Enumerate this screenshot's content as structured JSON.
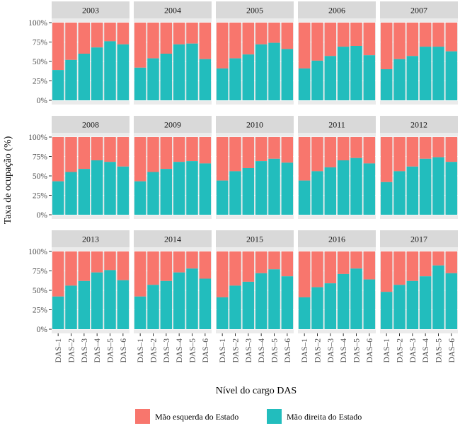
{
  "chart_data": {
    "type": "bar",
    "stacked": true,
    "percent": true,
    "ylabel": "Taxa de ocupação (%)",
    "xlabel": "Nível do cargo DAS",
    "categories": [
      "DAS–1",
      "DAS–2",
      "DAS–3",
      "DAS–4",
      "DAS–5",
      "DAS–6"
    ],
    "y_ticks": [
      "0%",
      "25%",
      "50%",
      "75%",
      "100%"
    ],
    "ylim": [
      0,
      100
    ],
    "legend_position": "bottom",
    "series": [
      {
        "name": "Mão esquerda do Estado",
        "color": "#f8766d"
      },
      {
        "name": "Mão direita do Estado",
        "color": "#22bdbd"
      }
    ],
    "panels": [
      {
        "title": "2003",
        "right_hand": [
          39,
          52,
          60,
          68,
          76,
          72
        ]
      },
      {
        "title": "2004",
        "right_hand": [
          42,
          54,
          60,
          72,
          73,
          53
        ]
      },
      {
        "title": "2005",
        "right_hand": [
          41,
          54,
          59,
          72,
          74,
          66
        ]
      },
      {
        "title": "2006",
        "right_hand": [
          41,
          51,
          57,
          69,
          70,
          58
        ]
      },
      {
        "title": "2007",
        "right_hand": [
          40,
          53,
          57,
          69,
          69,
          63
        ]
      },
      {
        "title": "2008",
        "right_hand": [
          43,
          55,
          59,
          70,
          68,
          62
        ]
      },
      {
        "title": "2009",
        "right_hand": [
          43,
          55,
          59,
          68,
          69,
          66
        ]
      },
      {
        "title": "2010",
        "right_hand": [
          44,
          56,
          60,
          69,
          72,
          67
        ]
      },
      {
        "title": "2011",
        "right_hand": [
          44,
          56,
          61,
          70,
          73,
          66
        ]
      },
      {
        "title": "2012",
        "right_hand": [
          42,
          56,
          62,
          72,
          74,
          68
        ]
      },
      {
        "title": "2013",
        "right_hand": [
          42,
          56,
          62,
          73,
          76,
          63
        ]
      },
      {
        "title": "2014",
        "right_hand": [
          42,
          57,
          62,
          73,
          78,
          65
        ]
      },
      {
        "title": "2015",
        "right_hand": [
          41,
          56,
          61,
          72,
          77,
          68
        ]
      },
      {
        "title": "2016",
        "right_hand": [
          41,
          54,
          59,
          71,
          78,
          64
        ]
      },
      {
        "title": "2017",
        "right_hand": [
          48,
          57,
          62,
          68,
          82,
          72
        ]
      }
    ]
  }
}
